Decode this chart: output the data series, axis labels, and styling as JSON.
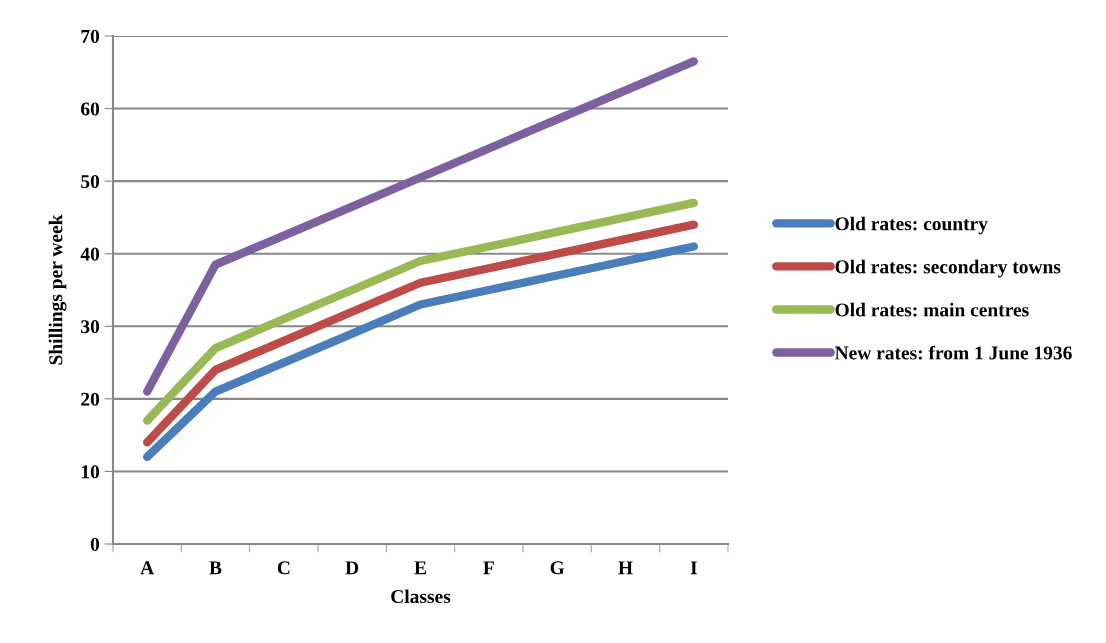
{
  "chart_data": {
    "type": "line",
    "xlabel": "Classes",
    "ylabel": "Shillings per week",
    "categories": [
      "A",
      "B",
      "C",
      "D",
      "E",
      "F",
      "G",
      "H",
      "I"
    ],
    "series": [
      {
        "name": "Old rates: country",
        "color": "#4a7ebb",
        "values": [
          12,
          21,
          25,
          29,
          33,
          35,
          37,
          39,
          41
        ]
      },
      {
        "name": "Old rates: secondary towns",
        "color": "#be4b48",
        "values": [
          14,
          24,
          28,
          32,
          36,
          38,
          40,
          42,
          44
        ]
      },
      {
        "name": "Old rates: main centres",
        "color": "#98b954",
        "values": [
          17,
          27,
          31,
          35,
          39,
          41,
          43,
          45,
          47
        ]
      },
      {
        "name": "New rates: from 1 June 1936",
        "color": "#7d60a0",
        "values": [
          21,
          38.5,
          42.5,
          46.5,
          50.5,
          54.5,
          58.5,
          62.5,
          66.5
        ]
      }
    ],
    "ylim": [
      0,
      70
    ],
    "yticks": [
      0,
      10,
      20,
      30,
      40,
      50,
      60,
      70
    ],
    "grid": "y",
    "legend": "right",
    "marker": "none",
    "line_style": "solid"
  }
}
